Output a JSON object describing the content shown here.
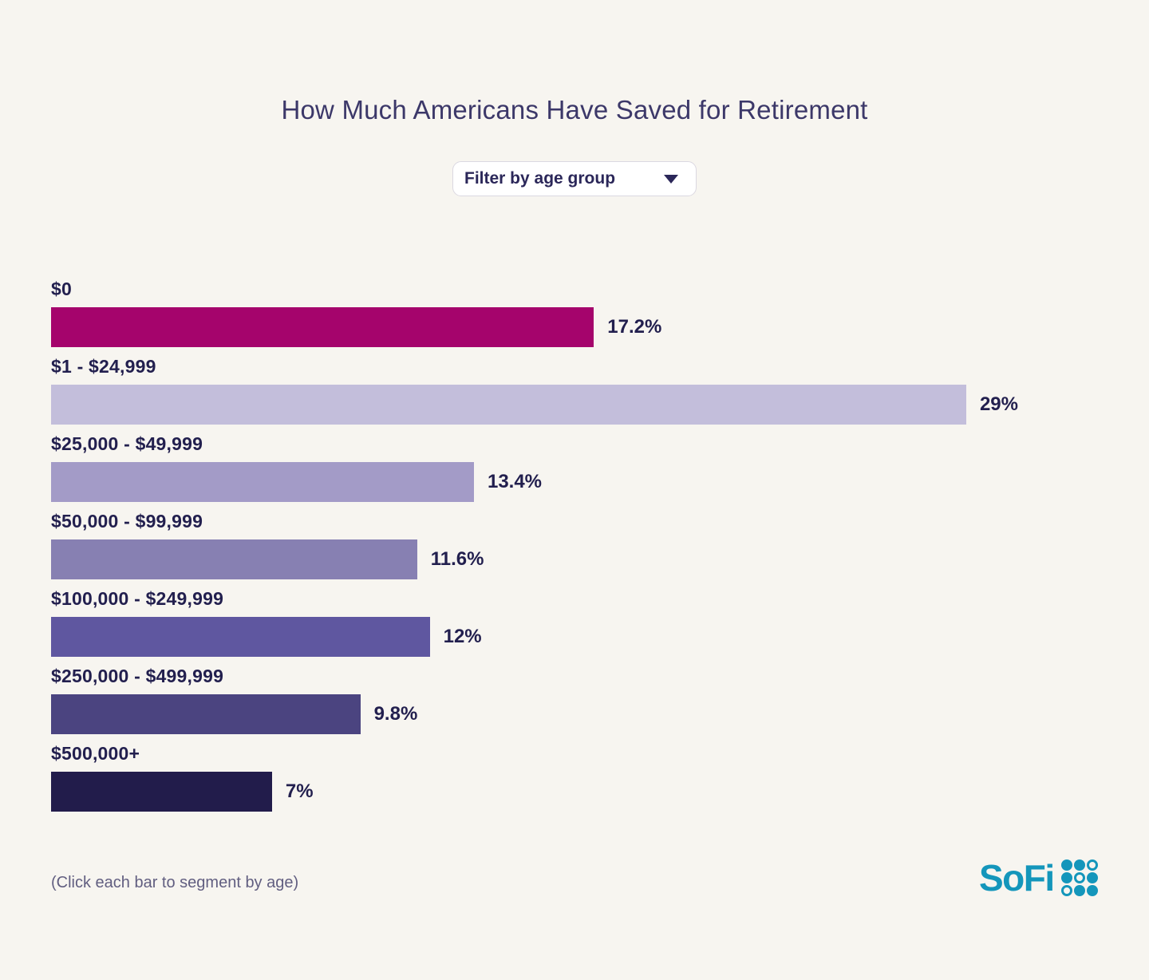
{
  "header": {
    "title": "How Much Americans Have Saved for Retirement"
  },
  "filter": {
    "label": "Filter by age group"
  },
  "chart_data": {
    "type": "bar",
    "orientation": "horizontal",
    "title": "How Much Americans Have Saved for Retirement",
    "categories": [
      "$0",
      "$1 - $24,999",
      "$25,000 - $49,999",
      "$50,000 - $99,999",
      "$100,000 - $249,999",
      "$250,000 - $499,999",
      "$500,000+"
    ],
    "values": [
      17.2,
      29,
      13.4,
      11.6,
      12,
      9.8,
      7
    ],
    "value_labels": [
      "17.2%",
      "29%",
      "13.4%",
      "11.6%",
      "12%",
      "9.8%",
      "7%"
    ],
    "bar_colors": [
      "#A5046C",
      "#C3BEDB",
      "#A39BC7",
      "#8780B2",
      "#5F57A0",
      "#4B4480",
      "#221C4B"
    ],
    "xlim": [
      0,
      29
    ],
    "grid": false,
    "legend": false,
    "value_label_position": "right-of-bar",
    "category_label_position": "above-bar"
  },
  "footer": {
    "note": "(Click each bar to segment by age)",
    "logo_text": "SoFi",
    "logo_color": "#1496BB",
    "logo_dots_pattern": [
      [
        1,
        1,
        0
      ],
      [
        1,
        0,
        1
      ],
      [
        0,
        1,
        1
      ]
    ]
  },
  "colors": {
    "background": "#F7F5F0",
    "title_text": "#3C3869",
    "label_text": "#221F4E",
    "note_text": "#615E80",
    "dropdown_border": "#DBD8E1",
    "dropdown_text": "#2B2759"
  }
}
